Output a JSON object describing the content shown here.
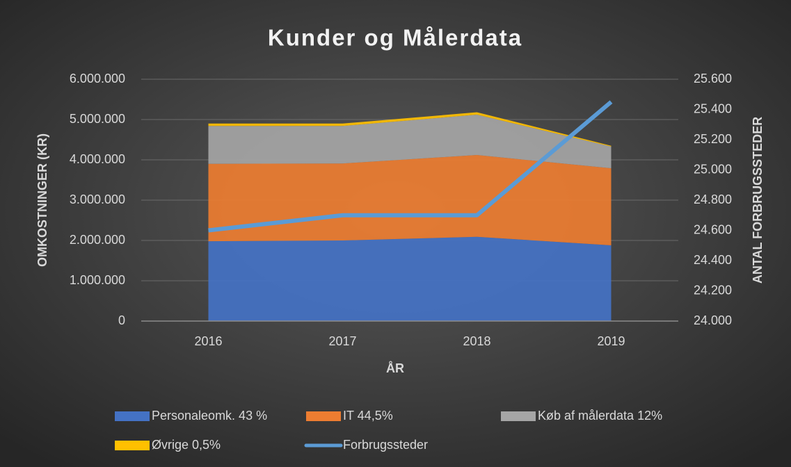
{
  "chart_data": {
    "type": "stacked-area-line",
    "title": "Kunder og Målerdata",
    "x_label": "ÅR",
    "y_label": "OMKOSTNINGER (KR)",
    "y2_label": "ANTAL FORBRUGSSTEDER",
    "categories": [
      "2016",
      "2017",
      "2018",
      "2019"
    ],
    "series": [
      {
        "name": "Personaleomk. 43 %",
        "color": "#4472c4",
        "values": [
          1980000,
          2000000,
          2090000,
          1880000
        ]
      },
      {
        "name": "IT 44,5%",
        "color": "#ed7d31",
        "values": [
          1920000,
          1910000,
          2030000,
          1910000
        ]
      },
      {
        "name": "Køb af målerdata 12%",
        "color": "#a5a5a5",
        "values": [
          940000,
          930000,
          1000000,
          540000
        ]
      },
      {
        "name": "Øvrige 0,5%",
        "color": "#ffc000",
        "values": [
          60000,
          60000,
          60000,
          20000
        ]
      },
      {
        "name": "Forbrugssteder",
        "color": "#5b9bd5",
        "axis": "y2",
        "type": "line",
        "values": [
          24600,
          24700,
          24700,
          25450
        ]
      }
    ],
    "ylim": [
      0,
      6000000
    ],
    "yticks": [
      0,
      {
        "value": 1000000,
        "label": "1.000.000"
      },
      {
        "value": 2000000,
        "label": "2.000.000"
      },
      {
        "value": 3000000,
        "label": "3.000.000"
      },
      {
        "value": 4000000,
        "label": "4.000.000"
      },
      {
        "value": 5000000,
        "label": "5.000.000"
      },
      {
        "value": 6000000,
        "label": "6.000.000"
      }
    ],
    "y2lim": [
      24000,
      25600
    ],
    "y2ticks": [
      {
        "value": 24000,
        "label": "24.000"
      },
      {
        "value": 24200,
        "label": "24.200"
      },
      {
        "value": 24400,
        "label": "24.400"
      },
      {
        "value": 24600,
        "label": "24.600"
      },
      {
        "value": 24800,
        "label": "24.800"
      },
      {
        "value": 25000,
        "label": "25.000"
      },
      {
        "value": 25200,
        "label": "25.200"
      },
      {
        "value": 25400,
        "label": "25.400"
      },
      {
        "value": 25600,
        "label": "25.600"
      }
    ],
    "grid": true
  }
}
